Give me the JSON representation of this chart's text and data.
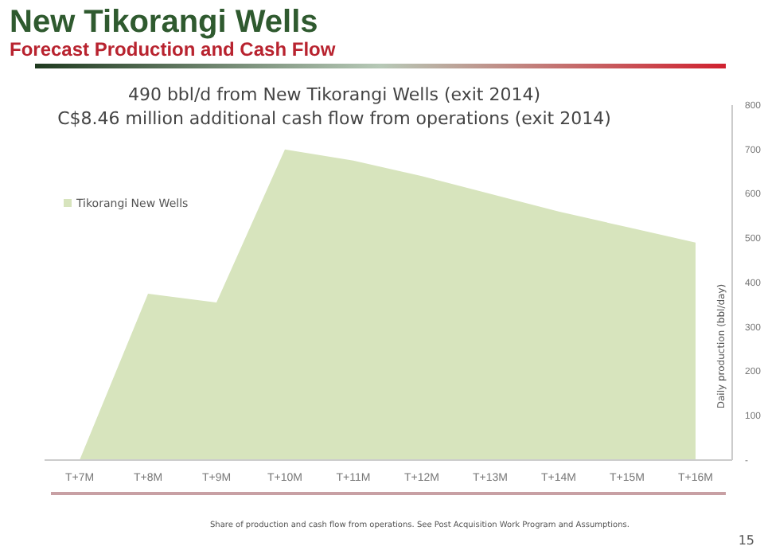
{
  "chart_data": {
    "type": "area",
    "title": "New Tikorangi Wells",
    "subtitle": "Forecast Production and Cash Flow",
    "categories": [
      "T+7M",
      "T+8M",
      "T+9M",
      "T+10M",
      "T+11M",
      "T+12M",
      "T+13M",
      "T+14M",
      "T+15M",
      "T+16M"
    ],
    "series": [
      {
        "name": "Tikorangi New Wells",
        "color": "#d7e4bd",
        "values": [
          0,
          375,
          355,
          700,
          675,
          640,
          600,
          560,
          525,
          490
        ]
      }
    ],
    "ylabel": "Daily production (bbl/day)",
    "ylim": [
      0,
      800
    ],
    "yticks": [
      {
        "value": 0,
        "label": "-"
      },
      100,
      200,
      300,
      400,
      500,
      600,
      700,
      800
    ],
    "legend": "top left",
    "grid": false,
    "annotations": [
      "490 bbl/d from New Tikorangi Wells (exit 2014)",
      "C$8.46 million additional cash flow from operations (exit 2014)",
      "Share of production and cash flow from operations. See Post Acquisition Work Program and Assumptions.",
      "15"
    ]
  }
}
